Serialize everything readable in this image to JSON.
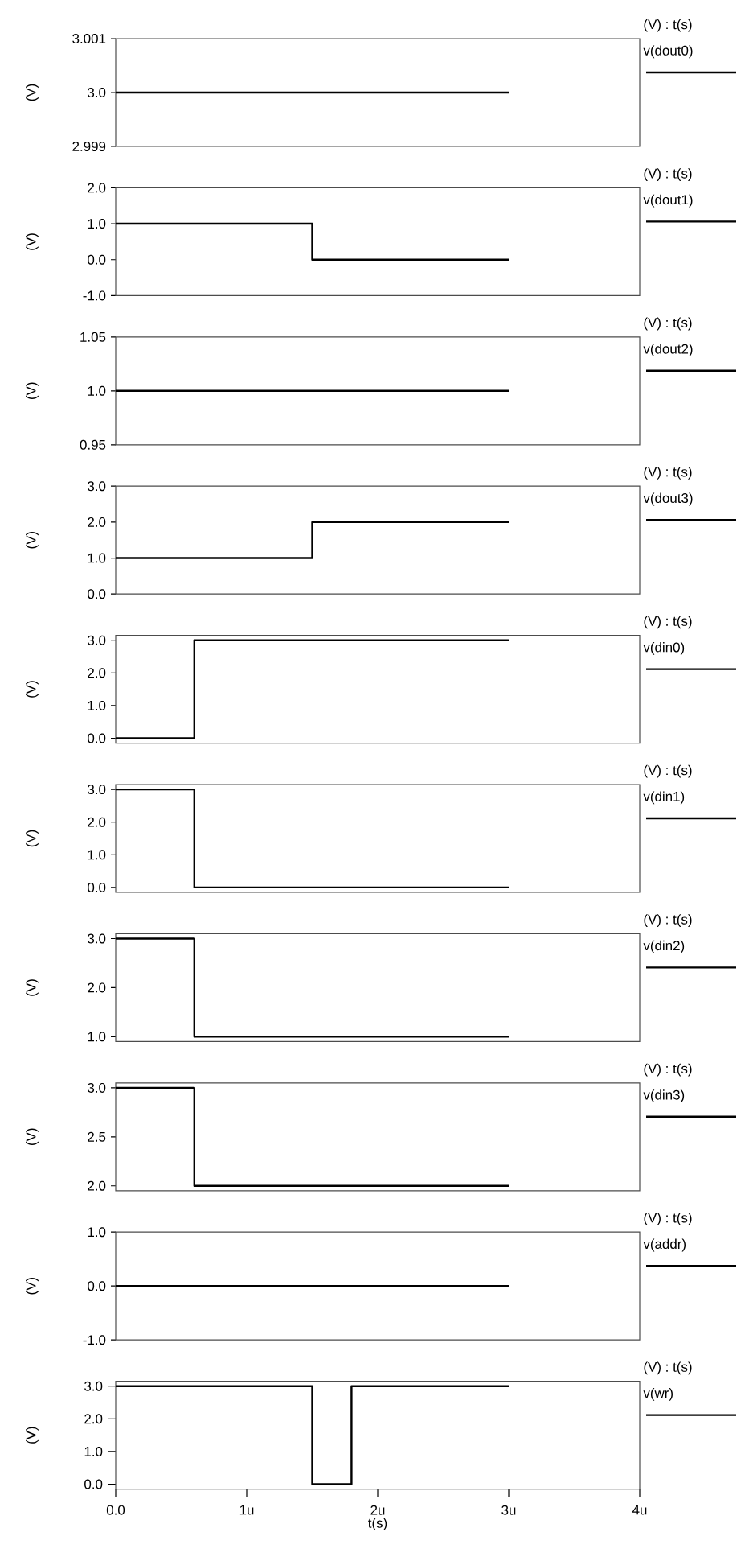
{
  "chart_data": [
    {
      "type": "step",
      "legend_title": "(V) : t(s)",
      "ylabel": "(V)",
      "legend": "right",
      "tick_labels": "y",
      "x": [
        0,
        3
      ],
      "xlim": [
        0,
        4
      ],
      "ylim": [
        2.999,
        3.001
      ],
      "yticks": [
        2.999,
        {
          "value": 3.0,
          "label": "3.0"
        },
        3.001
      ],
      "series": [
        {
          "name": "v(dout0)",
          "color": "#000000",
          "values": [
            3.0,
            3.0
          ]
        }
      ]
    },
    {
      "type": "step",
      "legend_title": "(V) : t(s)",
      "ylabel": "(V)",
      "legend": "right",
      "tick_labels": "y",
      "x": [
        0,
        1.5,
        3
      ],
      "xlim": [
        0,
        4
      ],
      "ylim": [
        -1,
        2
      ],
      "yticks": [
        {
          "value": -1,
          "label": "-1.0"
        },
        {
          "value": 0,
          "label": "0.0"
        },
        {
          "value": 1,
          "label": "1.0"
        },
        {
          "value": 2,
          "label": "2.0"
        }
      ],
      "series": [
        {
          "name": "v(dout1)",
          "color": "#000000",
          "values": [
            1,
            0,
            0
          ]
        }
      ]
    },
    {
      "type": "step",
      "legend_title": "(V) : t(s)",
      "ylabel": "(V)",
      "legend": "right",
      "tick_labels": "y",
      "x": [
        0,
        3
      ],
      "xlim": [
        0,
        4
      ],
      "ylim": [
        0.95,
        1.05
      ],
      "yticks": [
        0.95,
        {
          "value": 1.0,
          "label": "1.0"
        },
        1.05
      ],
      "series": [
        {
          "name": "v(dout2)",
          "color": "#000000",
          "values": [
            1.0,
            1.0
          ]
        }
      ]
    },
    {
      "type": "step",
      "legend_title": "(V) : t(s)",
      "ylabel": "(V)",
      "legend": "right",
      "tick_labels": "y",
      "x": [
        0,
        1.5,
        3
      ],
      "xlim": [
        0,
        4
      ],
      "ylim": [
        0,
        3
      ],
      "yticks": [
        {
          "value": 0,
          "label": "0.0"
        },
        {
          "value": 1,
          "label": "1.0"
        },
        {
          "value": 2,
          "label": "2.0"
        },
        {
          "value": 3,
          "label": "3.0"
        }
      ],
      "series": [
        {
          "name": "v(dout3)",
          "color": "#000000",
          "values": [
            1,
            2,
            2
          ]
        }
      ]
    },
    {
      "type": "step",
      "legend_title": "(V) : t(s)",
      "ylabel": "(V)",
      "legend": "right",
      "tick_labels": "y",
      "x": [
        0,
        0.6,
        3
      ],
      "xlim": [
        0,
        4
      ],
      "ylim": [
        -0.15,
        3.15
      ],
      "yticks": [
        {
          "value": 0,
          "label": "0.0"
        },
        {
          "value": 1,
          "label": "1.0"
        },
        {
          "value": 2,
          "label": "2.0"
        },
        {
          "value": 3,
          "label": "3.0"
        }
      ],
      "series": [
        {
          "name": "v(din0)",
          "color": "#000000",
          "values": [
            0,
            3,
            3
          ]
        }
      ]
    },
    {
      "type": "step",
      "legend_title": "(V) : t(s)",
      "ylabel": "(V)",
      "legend": "right",
      "tick_labels": "y",
      "x": [
        0,
        0.6,
        3
      ],
      "xlim": [
        0,
        4
      ],
      "ylim": [
        -0.15,
        3.15
      ],
      "yticks": [
        {
          "value": 0,
          "label": "0.0"
        },
        {
          "value": 1,
          "label": "1.0"
        },
        {
          "value": 2,
          "label": "2.0"
        },
        {
          "value": 3,
          "label": "3.0"
        }
      ],
      "series": [
        {
          "name": "v(din1)",
          "color": "#000000",
          "values": [
            3,
            0,
            0
          ]
        }
      ]
    },
    {
      "type": "step",
      "legend_title": "(V) : t(s)",
      "ylabel": "(V)",
      "legend": "right",
      "tick_labels": "y",
      "x": [
        0,
        0.6,
        3
      ],
      "xlim": [
        0,
        4
      ],
      "ylim": [
        0.9,
        3.1
      ],
      "yticks": [
        {
          "value": 1,
          "label": "1.0"
        },
        {
          "value": 2,
          "label": "2.0"
        },
        {
          "value": 3,
          "label": "3.0"
        }
      ],
      "series": [
        {
          "name": "v(din2)",
          "color": "#000000",
          "values": [
            3,
            1,
            1
          ]
        }
      ]
    },
    {
      "type": "step",
      "legend_title": "(V) : t(s)",
      "ylabel": "(V)",
      "legend": "right",
      "tick_labels": "y",
      "x": [
        0,
        0.6,
        3
      ],
      "xlim": [
        0,
        4
      ],
      "ylim": [
        1.95,
        3.05
      ],
      "yticks": [
        {
          "value": 2,
          "label": "2.0"
        },
        2.5,
        {
          "value": 3,
          "label": "3.0"
        }
      ],
      "series": [
        {
          "name": "v(din3)",
          "color": "#000000",
          "values": [
            3,
            2,
            2
          ]
        }
      ]
    },
    {
      "type": "step",
      "legend_title": "(V) : t(s)",
      "ylabel": "(V)",
      "legend": "right",
      "tick_labels": "y",
      "x": [
        0,
        3
      ],
      "xlim": [
        0,
        4
      ],
      "ylim": [
        -1,
        1
      ],
      "yticks": [
        {
          "value": -1,
          "label": "-1.0"
        },
        {
          "value": 0,
          "label": "0.0"
        },
        {
          "value": 1,
          "label": "1.0"
        }
      ],
      "series": [
        {
          "name": "v(addr)",
          "color": "#000000",
          "values": [
            0,
            0
          ]
        }
      ]
    },
    {
      "type": "step",
      "legend_title": "(V) : t(s)",
      "ylabel": "(V)",
      "xlabel": "t(s)",
      "legend": "right",
      "x": [
        0,
        1.5,
        1.8,
        3
      ],
      "xlim": [
        0,
        4
      ],
      "xticks": [
        {
          "value": 0,
          "label": "0.0"
        },
        {
          "value": 1,
          "label": "1u"
        },
        {
          "value": 2,
          "label": "2u"
        },
        {
          "value": 3,
          "label": "3u"
        },
        {
          "value": 4,
          "label": "4u"
        }
      ],
      "ylim": [
        -0.15,
        3.15
      ],
      "yticks": [
        {
          "value": 0,
          "label": "0.0"
        },
        {
          "value": 1,
          "label": "1.0"
        },
        {
          "value": 2,
          "label": "2.0"
        },
        {
          "value": 3,
          "label": "3.0"
        }
      ],
      "series": [
        {
          "name": "v(wr)",
          "color": "#000000",
          "values": [
            3,
            0,
            3,
            3
          ]
        }
      ]
    }
  ]
}
